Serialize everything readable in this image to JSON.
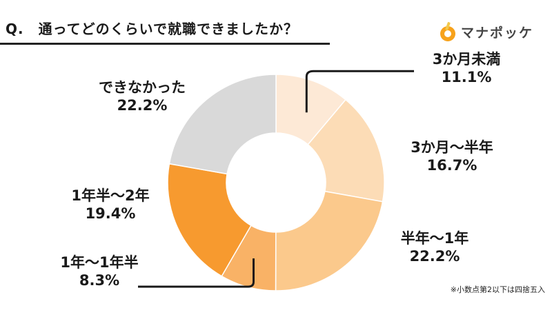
{
  "title": "Q.　通ってどのくらいで就職できましたか？",
  "logo": {
    "text": "マナポッケ",
    "icon": "pencil-circle-icon",
    "accent": "#f7a21b"
  },
  "note": "※小数点第2以下は四捨五入",
  "chart_data": {
    "type": "pie",
    "donut": true,
    "title": "Q.　通ってどのくらいで就職できましたか？",
    "start": "12 o'clock, clockwise",
    "slices": [
      {
        "label": "3か月未満",
        "value": 11.1,
        "value_label": "11.1%",
        "color": "#fde9d6"
      },
      {
        "label": "3か月〜半年",
        "value": 16.7,
        "value_label": "16.7%",
        "color": "#fcdcb6"
      },
      {
        "label": "半年〜1年",
        "value": 22.2,
        "value_label": "22.2%",
        "color": "#fbc98c"
      },
      {
        "label": "1年〜1年半",
        "value": 8.3,
        "value_label": "8.3%",
        "color": "#f9b266"
      },
      {
        "label": "1年半〜2年",
        "value": 19.4,
        "value_label": "19.4%",
        "color": "#f79a2f"
      },
      {
        "label": "できなかった",
        "value": 22.2,
        "value_label": "22.2%",
        "color": "#d9d9d9"
      }
    ]
  }
}
